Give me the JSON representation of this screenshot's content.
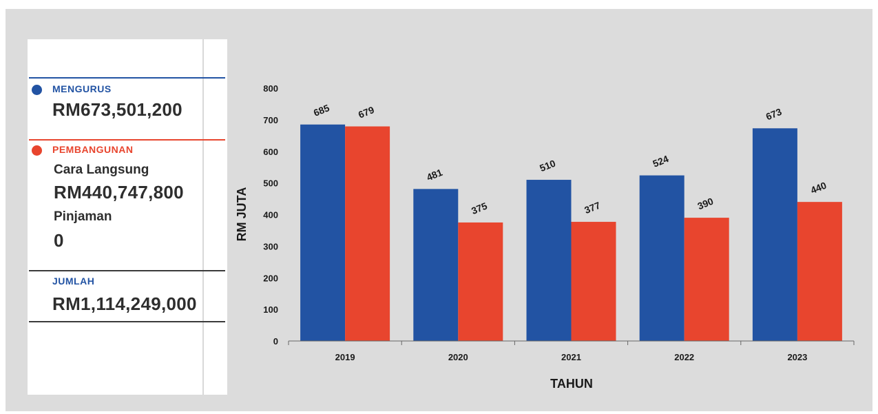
{
  "summary": {
    "mengurus": {
      "label": "MENGURUS",
      "value": "RM673,501,200",
      "color": "#2253a3"
    },
    "pembangunan": {
      "label": "PEMBANGUNAN",
      "color": "#e8452e",
      "cara_langsung_label": "Cara Langsung",
      "cara_langsung_value": "RM440,747,800",
      "pinjaman_label": "Pinjaman",
      "pinjaman_value": "0"
    },
    "jumlah": {
      "label": "JUMLAH",
      "value": "RM1,114,249,000",
      "color": "#2253a3"
    }
  },
  "chart_data": {
    "type": "bar",
    "categories": [
      "2019",
      "2020",
      "2021",
      "2022",
      "2023"
    ],
    "series": [
      {
        "values": [
          685,
          481,
          510,
          524,
          673
        ],
        "color": "#2253a3"
      },
      {
        "values": [
          679,
          375,
          377,
          390,
          440
        ],
        "color": "#e8452e"
      }
    ],
    "xlabel": "TAHUN",
    "ylabel": "RM JUTA",
    "ylim": [
      0,
      800
    ],
    "yticks": [
      0,
      100,
      200,
      300,
      400,
      500,
      600,
      700,
      800
    ],
    "grid": false,
    "legend": "none"
  }
}
